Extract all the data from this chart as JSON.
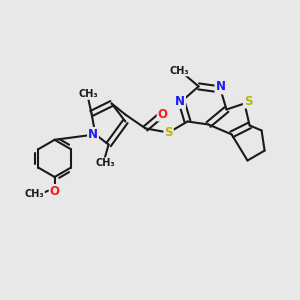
{
  "bg_color": "#e8e8e8",
  "bond_color": "#1a1a1a",
  "n_color": "#1a1aff",
  "o_color": "#ff1a1a",
  "s_color": "#b8b800",
  "bond_width": 1.5,
  "font_size": 8.5,
  "small_font": 7.0,
  "xlim": [
    0,
    10
  ],
  "ylim": [
    0,
    10
  ]
}
